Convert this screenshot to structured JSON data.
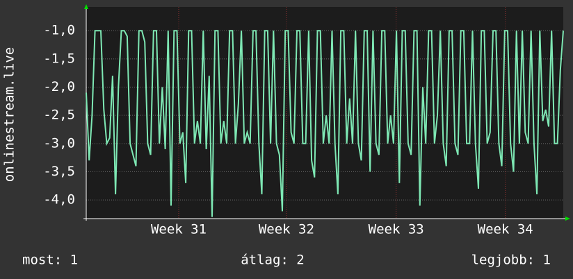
{
  "chart_data": {
    "type": "line",
    "y_label": "onlinestream.live",
    "series": [
      {
        "color": "#7ee8b4",
        "values": [
          -2.1,
          -3.3,
          -2.5,
          -1,
          -1,
          -1,
          -2.4,
          -3,
          -2.9,
          -1.8,
          -3.9,
          -2,
          -1,
          -1,
          -1.1,
          -3,
          -3.2,
          -3.4,
          -1,
          -1,
          -1.2,
          -3,
          -3.2,
          -1,
          -1,
          -3,
          -2,
          -3.1,
          -1,
          -4.1,
          -1,
          -1,
          -3,
          -2.8,
          -3.7,
          -1,
          -1,
          -3,
          -2.6,
          -3,
          -1,
          -3.1,
          -1.8,
          -4.3,
          -1,
          -1,
          -3,
          -2.6,
          -3,
          -1,
          -1,
          -3,
          -2.3,
          -1,
          -3,
          -2.8,
          -3,
          -1,
          -1,
          -3,
          -3.9,
          -1,
          -1,
          -3,
          -1,
          -3,
          -3.2,
          -4.2,
          -1,
          -1,
          -2.8,
          -3,
          -1,
          -1,
          -3,
          -3,
          -1,
          -3.3,
          -3.6,
          -1,
          -1,
          -3,
          -2.5,
          -3,
          -1,
          -3,
          -3.9,
          -1,
          -1,
          -3,
          -2.2,
          -3,
          -1,
          -3,
          -3.3,
          -1,
          -1,
          -3.5,
          -1,
          -3,
          -3.2,
          -1,
          -1,
          -3,
          -2.5,
          -3,
          -1,
          -3.7,
          -1,
          -1,
          -3,
          -3.2,
          -1,
          -1,
          -4.1,
          -2,
          -3,
          -1,
          -1,
          -3,
          -2.5,
          -1,
          -3,
          -3.4,
          -1,
          -1,
          -3,
          -3.2,
          -1,
          -1,
          -3,
          -3,
          -1,
          -3,
          -3.8,
          -1,
          -1,
          -3,
          -2.8,
          -1,
          -1,
          -3,
          -3.4,
          -1,
          -1,
          -3,
          -3.5,
          -1,
          -3,
          -1,
          -2.8,
          -3,
          -1,
          -3,
          -3.9,
          -1,
          -2.6,
          -2.4,
          -2.7,
          -1,
          -3,
          -3,
          -1.7,
          -1
        ]
      }
    ],
    "xlim": [
      0,
      163
    ],
    "xticks": [
      {
        "value": 31.6,
        "label": "Week 31"
      },
      {
        "value": 68.4,
        "label": "Week 32"
      },
      {
        "value": 105.9,
        "label": "Week 33"
      },
      {
        "value": 143.2,
        "label": "Week 34"
      }
    ],
    "ylim": [
      -4.33,
      -0.58
    ],
    "yticks": [
      {
        "value": -1.0,
        "label": "-1,0"
      },
      {
        "value": -1.5,
        "label": "-1,5"
      },
      {
        "value": -2.0,
        "label": "-2,0"
      },
      {
        "value": -2.5,
        "label": "-2,5"
      },
      {
        "value": -3.0,
        "label": "-3,0"
      },
      {
        "value": -3.5,
        "label": "-3,5"
      },
      {
        "value": -4.0,
        "label": "-4,0"
      }
    ],
    "grid": true,
    "footer": [
      "most: 1",
      "átlag: 2",
      "legjobb: 1"
    ]
  }
}
